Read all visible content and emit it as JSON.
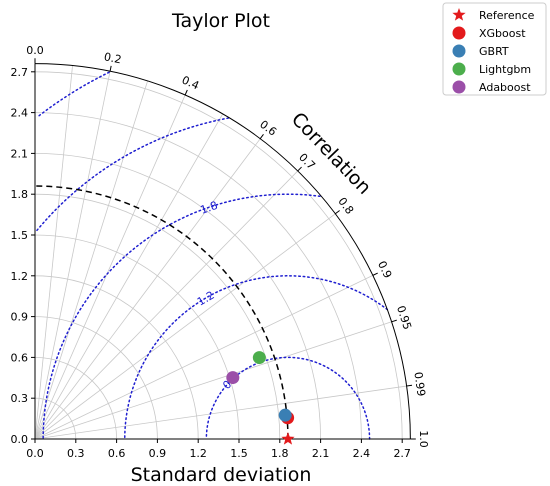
{
  "chart_data": {
    "type": "scatter",
    "subtype": "taylor-diagram",
    "title": "Taylor Plot",
    "xlabel": "Standard deviation",
    "angular_label": "Correlation",
    "std_ticks": [
      "0.0",
      "0.3",
      "0.6",
      "0.9",
      "1.2",
      "1.5",
      "1.8",
      "2.1",
      "2.4",
      "2.7"
    ],
    "std_tick_values": [
      0.0,
      0.3,
      0.6,
      0.9,
      1.2,
      1.5,
      1.8,
      2.1,
      2.4,
      2.7
    ],
    "std_max": 2.76,
    "correlation_ticks": [
      "0.0",
      "0.2",
      "0.4",
      "0.6",
      "0.7",
      "0.8",
      "0.9",
      "0.95",
      "0.99",
      "1.0"
    ],
    "correlation_values": [
      0.0,
      0.2,
      0.4,
      0.6,
      0.7,
      0.8,
      0.9,
      0.95,
      0.99,
      1.0
    ],
    "rms_contours": [
      {
        "value": 0.6,
        "label": "0.6"
      },
      {
        "value": 1.2,
        "label": "1.2"
      },
      {
        "value": 1.8,
        "label": "1.8"
      },
      {
        "value": 2.4,
        "label": "2.4"
      },
      {
        "value": 3.0,
        "label": "3.0"
      }
    ],
    "reference_std": 1.86,
    "series": [
      {
        "name": "Reference",
        "std": 1.86,
        "corr": 1.0,
        "color": "#e31a1c",
        "marker": "star"
      },
      {
        "name": "XGboost",
        "std": 1.864,
        "corr": 0.9965,
        "color": "#e31a1c",
        "marker": "circle"
      },
      {
        "name": "GBRT",
        "std": 1.848,
        "corr": 0.9955,
        "color": "#3a7fb4",
        "marker": "circle"
      },
      {
        "name": "Lightgbm",
        "std": 1.755,
        "corr": 0.94,
        "color": "#4cae4c",
        "marker": "circle"
      },
      {
        "name": "Adaboost",
        "std": 1.523,
        "corr": 0.955,
        "color": "#9b4fa8",
        "marker": "circle"
      }
    ],
    "grid": true,
    "legend_position": "top-right"
  }
}
